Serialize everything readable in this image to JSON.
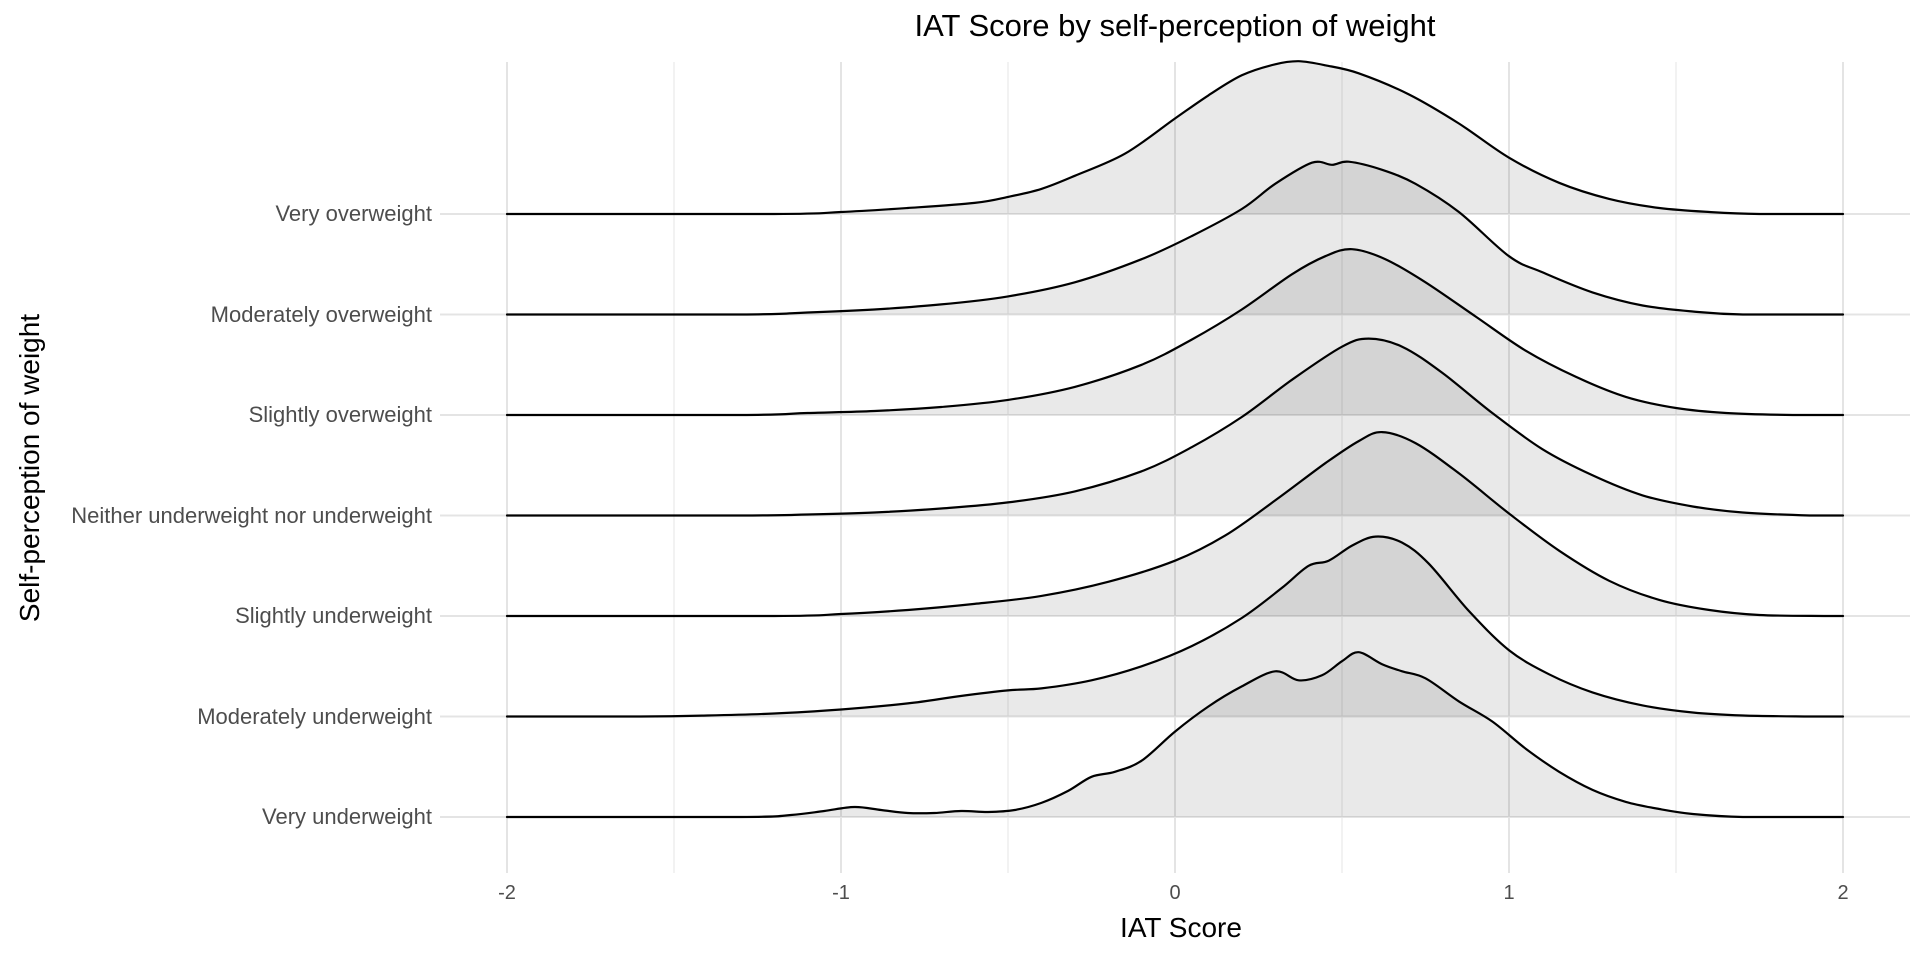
{
  "chart_data": {
    "type": "ridgeline",
    "title": "IAT Score by self-perception of weight",
    "xlabel": "IAT Score",
    "ylabel": "Self-perception of weight",
    "xlim": [
      -2,
      2
    ],
    "x_ticks": [
      -2,
      -1,
      0,
      1,
      2
    ],
    "x_minor_ticks": [
      -1.5,
      -0.5,
      0.5,
      1.5
    ],
    "grid": true,
    "legend": "none",
    "height_units": "relative to category row spacing (1.0 = gap between adjacent baselines)",
    "categories": [
      "Very overweight",
      "Moderately overweight",
      "Slightly overweight",
      "Neither underweight nor underweight",
      "Slightly underweight",
      "Moderately underweight",
      "Very underweight"
    ],
    "series": [
      {
        "name": "Very overweight",
        "x": [
          -2,
          -1.2,
          -1.0,
          -0.8,
          -0.6,
          -0.5,
          -0.4,
          -0.3,
          -0.15,
          0,
          0.1,
          0.2,
          0.3,
          0.37,
          0.45,
          0.55,
          0.7,
          0.85,
          1.0,
          1.15,
          1.3,
          1.45,
          1.6,
          1.75,
          2
        ],
        "h": [
          0,
          0,
          0.02,
          0.06,
          0.11,
          0.17,
          0.25,
          0.38,
          0.6,
          0.95,
          1.18,
          1.38,
          1.49,
          1.52,
          1.48,
          1.4,
          1.19,
          0.9,
          0.56,
          0.31,
          0.15,
          0.06,
          0.02,
          0,
          0
        ]
      },
      {
        "name": "Moderately overweight",
        "x": [
          -2,
          -1.3,
          -1.1,
          -0.9,
          -0.7,
          -0.5,
          -0.3,
          -0.1,
          0.05,
          0.2,
          0.3,
          0.41,
          0.47,
          0.52,
          0.62,
          0.72,
          0.85,
          1.0,
          1.1,
          1.25,
          1.4,
          1.55,
          1.7,
          2
        ],
        "h": [
          0,
          0,
          0.02,
          0.05,
          0.1,
          0.18,
          0.32,
          0.55,
          0.78,
          1.05,
          1.3,
          1.51,
          1.49,
          1.52,
          1.44,
          1.3,
          1.02,
          0.58,
          0.42,
          0.22,
          0.09,
          0.03,
          0,
          0
        ]
      },
      {
        "name": "Slightly overweight",
        "x": [
          -2,
          -1.3,
          -1.1,
          -0.9,
          -0.7,
          -0.5,
          -0.3,
          -0.1,
          0.05,
          0.2,
          0.35,
          0.45,
          0.53,
          0.63,
          0.75,
          0.9,
          1.05,
          1.2,
          1.35,
          1.5,
          1.65,
          1.85,
          2
        ],
        "h": [
          0,
          0,
          0.02,
          0.04,
          0.08,
          0.15,
          0.28,
          0.5,
          0.75,
          1.05,
          1.4,
          1.58,
          1.65,
          1.55,
          1.32,
          0.98,
          0.64,
          0.38,
          0.18,
          0.07,
          0.02,
          0,
          0
        ]
      },
      {
        "name": "Neither underweight nor underweight",
        "x": [
          -2,
          -1.3,
          -1.1,
          -0.9,
          -0.7,
          -0.5,
          -0.3,
          -0.1,
          0.05,
          0.2,
          0.35,
          0.5,
          0.58,
          0.68,
          0.8,
          0.95,
          1.1,
          1.25,
          1.4,
          1.55,
          1.7,
          1.9,
          2
        ],
        "h": [
          0,
          0,
          0.01,
          0.03,
          0.07,
          0.13,
          0.24,
          0.44,
          0.68,
          0.98,
          1.35,
          1.68,
          1.76,
          1.68,
          1.42,
          1.02,
          0.66,
          0.4,
          0.2,
          0.09,
          0.03,
          0,
          0
        ]
      },
      {
        "name": "Slightly underweight",
        "x": [
          -2,
          -1.2,
          -1.0,
          -0.8,
          -0.6,
          -0.4,
          -0.2,
          0,
          0.15,
          0.3,
          0.45,
          0.55,
          0.62,
          0.72,
          0.85,
          1.0,
          1.15,
          1.3,
          1.45,
          1.6,
          1.75,
          1.95,
          2
        ],
        "h": [
          0,
          0,
          0.02,
          0.06,
          0.12,
          0.2,
          0.34,
          0.55,
          0.8,
          1.15,
          1.52,
          1.74,
          1.83,
          1.72,
          1.42,
          1.02,
          0.65,
          0.35,
          0.16,
          0.06,
          0.01,
          0,
          0
        ]
      },
      {
        "name": "Moderately underweight",
        "x": [
          -2,
          -1.6,
          -1.4,
          -1.2,
          -1.0,
          -0.8,
          -0.65,
          -0.5,
          -0.4,
          -0.25,
          -0.1,
          0.05,
          0.2,
          0.32,
          0.4,
          0.46,
          0.53,
          0.6,
          0.68,
          0.76,
          0.88,
          1.0,
          1.12,
          1.25,
          1.4,
          1.55,
          1.7,
          1.9,
          2
        ],
        "h": [
          0,
          0,
          0.01,
          0.03,
          0.07,
          0.13,
          0.2,
          0.26,
          0.28,
          0.36,
          0.5,
          0.7,
          0.98,
          1.28,
          1.5,
          1.55,
          1.7,
          1.79,
          1.73,
          1.52,
          1.05,
          0.66,
          0.42,
          0.24,
          0.11,
          0.04,
          0.01,
          0,
          0
        ]
      },
      {
        "name": "Very underweight",
        "x": [
          -2,
          -1.3,
          -1.15,
          -1.05,
          -0.96,
          -0.88,
          -0.8,
          -0.72,
          -0.64,
          -0.56,
          -0.48,
          -0.4,
          -0.32,
          -0.25,
          -0.18,
          -0.1,
          0,
          0.1,
          0.2,
          0.3,
          0.37,
          0.44,
          0.5,
          0.55,
          0.62,
          0.68,
          0.75,
          0.85,
          0.95,
          1.05,
          1.15,
          1.25,
          1.35,
          1.45,
          1.55,
          1.7,
          2
        ],
        "h": [
          0,
          0,
          0.02,
          0.06,
          0.1,
          0.07,
          0.04,
          0.04,
          0.06,
          0.05,
          0.07,
          0.14,
          0.26,
          0.4,
          0.45,
          0.56,
          0.85,
          1.1,
          1.3,
          1.45,
          1.36,
          1.41,
          1.55,
          1.64,
          1.52,
          1.45,
          1.38,
          1.15,
          0.95,
          0.68,
          0.45,
          0.27,
          0.15,
          0.08,
          0.03,
          0,
          0
        ]
      }
    ],
    "colors": {
      "background": "#ffffff",
      "ridge_fill": "rgba(0,0,0,0.085)",
      "ridge_stroke": "#000000",
      "grid_major": "#e4e4e4",
      "grid_minor": "#ededed",
      "axis_text": "#4d4d4d",
      "title_text": "#000000"
    }
  }
}
